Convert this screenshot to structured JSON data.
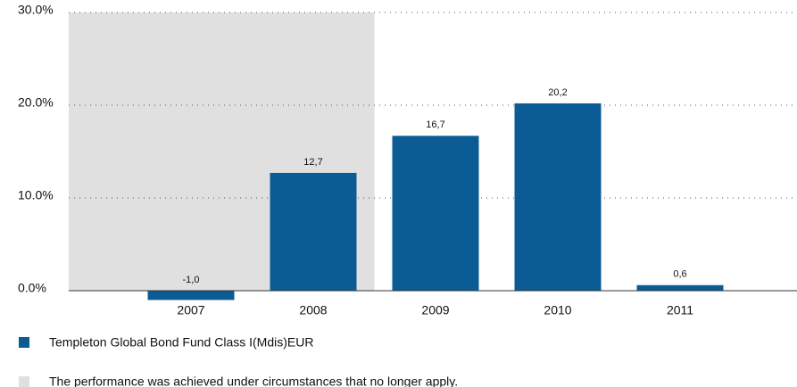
{
  "chart_data": {
    "type": "bar",
    "categories": [
      "2007",
      "2008",
      "2009",
      "2010",
      "2011"
    ],
    "series": [
      {
        "name": "Templeton Global Bond Fund Class I(Mdis)EUR",
        "color": "#0b5c94",
        "values": [
          -1.0,
          12.7,
          16.7,
          20.2,
          0.6
        ],
        "value_labels": [
          "-1,0",
          "12,7",
          "16,7",
          "20,2",
          "0,6"
        ]
      }
    ],
    "ylim": [
      0,
      30
    ],
    "yticks": [
      {
        "value": 0,
        "label": "0.0%"
      },
      {
        "value": 10,
        "label": "10.0%"
      },
      {
        "value": 20,
        "label": "20.0%"
      },
      {
        "value": 30,
        "label": "30.0%"
      }
    ],
    "grid": true,
    "shaded": {
      "label": "The performance was achieved under circumstances that no longer apply.",
      "color": "#e0e0e0",
      "through": "2008"
    }
  }
}
